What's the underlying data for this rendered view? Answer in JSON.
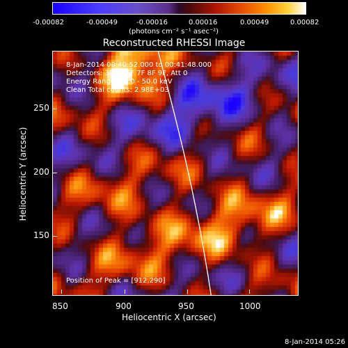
{
  "colorbar": {
    "tick_labels": [
      "-0.00082",
      "-0.00049",
      "-0.00016",
      "0.00016",
      "0.00049",
      "0.00082"
    ],
    "units": "(photons cm⁻² s⁻¹ asec⁻²)",
    "colors": [
      "#1a00ff",
      "#5a2e88",
      "#2a0a2a",
      "#aa1400",
      "#ff8c00",
      "#ffffff"
    ]
  },
  "title": "Reconstructed RHESSI Image",
  "info_lines": [
    "8-Jan-2014 00:40:52.000 to 00:41:48.000",
    "Detectors: 3F 5F 6F 7F 8F 9F, Att 0",
    "Energy Range: 25.0 - 50.0 keV",
    "Clean    Total counts: 2.98E+03"
  ],
  "peak_text": "Position of Peak = [912,290]",
  "axes": {
    "x_label": "Heliocentric X (arcsec)",
    "y_label": "Heliocentric Y (arcsec)",
    "x_ticks": [
      "850",
      "900",
      "950",
      "1000"
    ],
    "y_ticks": [
      "250",
      "200",
      "150"
    ]
  },
  "footer_date": "8-Jan-2014 05:26"
}
